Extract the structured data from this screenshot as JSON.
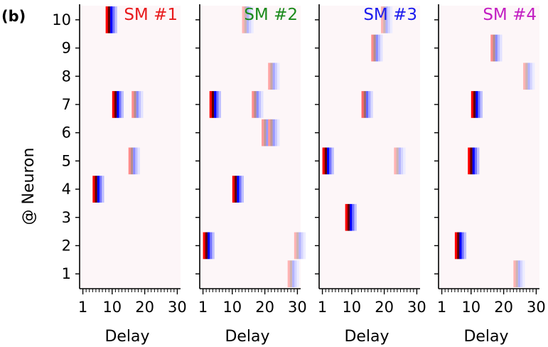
{
  "chart_data": {
    "type": "heatmap",
    "panel_label": "(b)",
    "ylabel": "@ Neuron",
    "y_ticks": [
      "1",
      "2",
      "3",
      "4",
      "5",
      "6",
      "7",
      "8",
      "9",
      "10"
    ],
    "x_ticks": [
      "1",
      "10",
      "20",
      "30"
    ],
    "xlim": [
      0,
      31
    ],
    "ylim": [
      0.5,
      10.5
    ],
    "colors": {
      "red": "#ff0000",
      "blue": "#0000ff",
      "background": "#fdf6f8"
    },
    "panels": [
      {
        "title": "SM #1",
        "title_color": "#e8191b",
        "xlabel": "Delay",
        "patterns": [
          {
            "neuron": 10,
            "delay": 8,
            "strength": 1.0
          },
          {
            "neuron": 7,
            "delay": 10,
            "strength": 1.0
          },
          {
            "neuron": 7,
            "delay": 16,
            "strength": 0.45
          },
          {
            "neuron": 5,
            "delay": 15,
            "strength": 0.45
          },
          {
            "neuron": 4,
            "delay": 4,
            "strength": 1.0
          }
        ]
      },
      {
        "title": "SM #2",
        "title_color": "#1a8a1a",
        "xlabel": "Delay",
        "patterns": [
          {
            "neuron": 10,
            "delay": 13,
            "strength": 0.3
          },
          {
            "neuron": 8,
            "delay": 21,
            "strength": 0.35
          },
          {
            "neuron": 7,
            "delay": 3,
            "strength": 1.0
          },
          {
            "neuron": 7,
            "delay": 16,
            "strength": 0.45
          },
          {
            "neuron": 6,
            "delay": 19,
            "strength": 0.4
          },
          {
            "neuron": 6,
            "delay": 21,
            "strength": 0.4
          },
          {
            "neuron": 4,
            "delay": 10,
            "strength": 1.0
          },
          {
            "neuron": 2,
            "delay": 1,
            "strength": 1.0
          },
          {
            "neuron": 2,
            "delay": 29,
            "strength": 0.3
          },
          {
            "neuron": 1,
            "delay": 27,
            "strength": 0.3
          }
        ]
      },
      {
        "title": "SM #3",
        "title_color": "#1a1aee",
        "xlabel": "Delay",
        "patterns": [
          {
            "neuron": 10,
            "delay": 19,
            "strength": 0.3
          },
          {
            "neuron": 9,
            "delay": 16,
            "strength": 0.45
          },
          {
            "neuron": 7,
            "delay": 13,
            "strength": 0.6
          },
          {
            "neuron": 5,
            "delay": 1,
            "strength": 1.0
          },
          {
            "neuron": 5,
            "delay": 23,
            "strength": 0.3
          },
          {
            "neuron": 3,
            "delay": 8,
            "strength": 1.0
          }
        ]
      },
      {
        "title": "SM #4",
        "title_color": "#c21ec2",
        "xlabel": "Delay",
        "patterns": [
          {
            "neuron": 9,
            "delay": 16,
            "strength": 0.45
          },
          {
            "neuron": 8,
            "delay": 26,
            "strength": 0.3
          },
          {
            "neuron": 7,
            "delay": 10,
            "strength": 1.0
          },
          {
            "neuron": 5,
            "delay": 9,
            "strength": 1.0
          },
          {
            "neuron": 2,
            "delay": 5,
            "strength": 1.0
          },
          {
            "neuron": 1,
            "delay": 23,
            "strength": 0.3
          }
        ]
      }
    ]
  }
}
